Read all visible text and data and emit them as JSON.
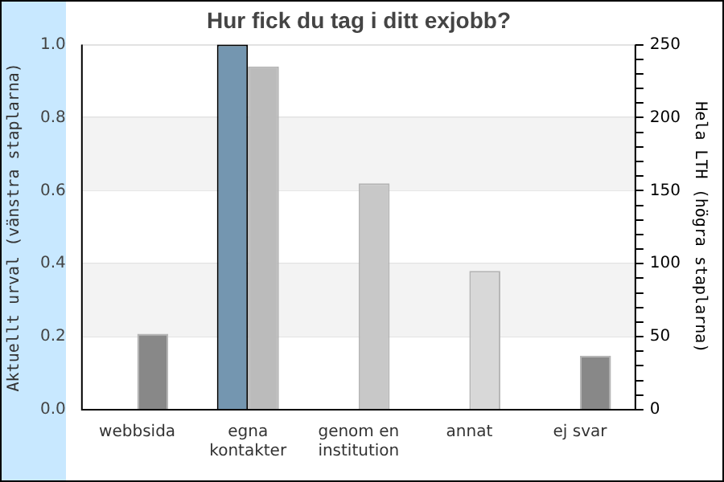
{
  "chart_data": {
    "type": "bar",
    "title": "Hur fick du tag i ditt exjobb?",
    "categories": [
      "webbsida",
      "egna kontakter",
      "genom en institution",
      "annat",
      "ej svar"
    ],
    "ylabel": "Aktuellt urval (vänstra staplarna)",
    "y2label": "Hela LTH (högra staplarna)",
    "series": [
      {
        "values": [
          null,
          1.0,
          null,
          null,
          null
        ],
        "color": "#7496b0"
      },
      {
        "values": [
          52,
          235,
          155,
          95,
          37
        ],
        "axis": "y2",
        "colors": [
          "#888888",
          "#bbbbbb",
          "#c8c8c8",
          "#d8d8d8",
          "#888888"
        ]
      }
    ],
    "ylim": [
      0,
      1.0
    ],
    "yticks": [
      {
        "value": 0,
        "label": "0.0"
      },
      0.2,
      0.4,
      0.6,
      0.8,
      {
        "value": 1,
        "label": "1.0"
      }
    ],
    "y2lim": [
      0,
      250
    ],
    "y2ticks": [
      0,
      {
        "value": 10,
        "label": null
      },
      {
        "value": 20,
        "label": null
      },
      {
        "value": 30,
        "label": null
      },
      {
        "value": 40,
        "label": null
      },
      50,
      {
        "value": 60,
        "label": null
      },
      {
        "value": 70,
        "label": null
      },
      {
        "value": 80,
        "label": null
      },
      {
        "value": 90,
        "label": null
      },
      100,
      {
        "value": 110,
        "label": null
      },
      {
        "value": 120,
        "label": null
      },
      {
        "value": 130,
        "label": null
      },
      {
        "value": 140,
        "label": null
      },
      150,
      {
        "value": 160,
        "label": null
      },
      {
        "value": 170,
        "label": null
      },
      {
        "value": 180,
        "label": null
      },
      {
        "value": 190,
        "label": null
      },
      200,
      {
        "value": 210,
        "label": null
      },
      {
        "value": 220,
        "label": null
      },
      {
        "value": 230,
        "label": null
      },
      {
        "value": 240,
        "label": null
      },
      250
    ],
    "bands": [
      {
        "axis": "y",
        "from": 0.2,
        "to": 0.4,
        "color": "#f3f3f3"
      },
      {
        "axis": "y",
        "from": 0.6,
        "to": 0.8,
        "color": "#f3f3f3"
      }
    ],
    "grid": "y",
    "legend": false
  }
}
